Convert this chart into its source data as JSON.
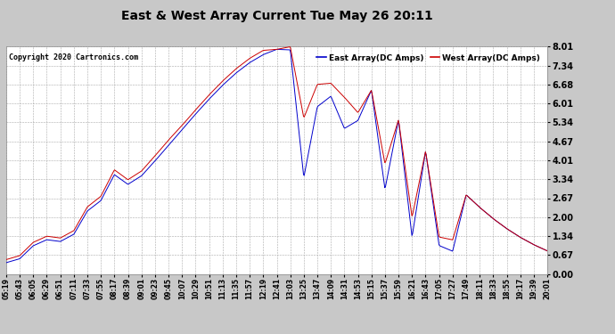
{
  "title": "East & West Array Current Tue May 26 20:11",
  "copyright": "Copyright 2020 Cartronics.com",
  "ylabel_east": "East Array(DC Amps)",
  "ylabel_west": "West Array(DC Amps)",
  "y_ticks": [
    0.0,
    0.67,
    1.34,
    2.0,
    2.67,
    3.34,
    4.01,
    4.67,
    5.34,
    6.01,
    6.68,
    7.34,
    8.01
  ],
  "ylim": [
    0.0,
    8.01
  ],
  "color_east": "#0000cc",
  "color_west": "#cc0000",
  "background_color": "#c8c8c8",
  "plot_bg_color": "#ffffff",
  "grid_color": "#aaaaaa",
  "x_labels": [
    "05:19",
    "05:43",
    "06:05",
    "06:29",
    "06:51",
    "07:11",
    "07:33",
    "07:55",
    "08:17",
    "08:39",
    "09:01",
    "09:23",
    "09:45",
    "10:07",
    "10:29",
    "10:51",
    "11:13",
    "11:35",
    "11:57",
    "12:19",
    "12:41",
    "13:03",
    "13:25",
    "13:47",
    "14:09",
    "14:31",
    "14:53",
    "15:15",
    "15:37",
    "15:59",
    "16:21",
    "16:43",
    "17:05",
    "17:27",
    "17:49",
    "18:11",
    "18:33",
    "18:55",
    "19:17",
    "19:39",
    "20:01"
  ]
}
